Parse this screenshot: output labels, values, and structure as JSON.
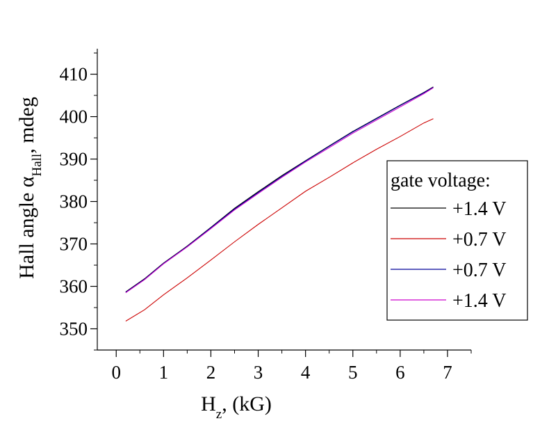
{
  "chart_data": {
    "type": "line",
    "title": "",
    "xlabel": {
      "main": "H",
      "sub": "z",
      "rest": ", (kG)"
    },
    "ylabel": {
      "main": "Hall angle α",
      "sub": "Hall",
      "rest": ", mdeg"
    },
    "xlim": [
      -0.4,
      7.5
    ],
    "ylim": [
      345,
      416
    ],
    "xticks": [
      0,
      1,
      2,
      3,
      4,
      5,
      6,
      7
    ],
    "yticks": [
      350,
      360,
      370,
      380,
      390,
      400,
      410
    ],
    "grid": false,
    "legend": {
      "title": "gate voltage:",
      "placement": "right"
    },
    "series": [
      {
        "name": "+1.4 V",
        "color": "#000000",
        "x": [
          0.2,
          0.6,
          1.0,
          1.5,
          2.0,
          2.5,
          3.0,
          3.5,
          4.0,
          4.5,
          5.0,
          5.5,
          6.0,
          6.5,
          6.7
        ],
        "y": [
          358.7,
          361.8,
          365.5,
          369.5,
          373.9,
          378.4,
          382.3,
          386.1,
          389.6,
          393.1,
          396.5,
          399.6,
          402.7,
          405.7,
          407.0
        ]
      },
      {
        "name": "+0.7 V",
        "color": "#cc0000",
        "x": [
          0.2,
          0.6,
          1.0,
          1.5,
          2.0,
          2.5,
          3.0,
          3.5,
          4.0,
          4.5,
          5.0,
          5.5,
          6.0,
          6.5,
          6.7
        ],
        "y": [
          351.8,
          354.5,
          358.0,
          362.0,
          366.2,
          370.5,
          374.6,
          378.5,
          382.4,
          385.7,
          389.1,
          392.3,
          395.3,
          398.5,
          399.5
        ]
      },
      {
        "name": "+0.7 V",
        "color": "#000099",
        "x": [
          0.2,
          0.6,
          1.0,
          1.5,
          2.0,
          2.5,
          3.0,
          3.5,
          4.0,
          4.5,
          5.0,
          5.5,
          6.0,
          6.5,
          6.7
        ],
        "y": [
          358.6,
          361.7,
          365.4,
          369.4,
          373.8,
          378.2,
          382.1,
          385.9,
          389.5,
          393.0,
          396.4,
          399.5,
          402.6,
          405.6,
          406.9
        ]
      },
      {
        "name": "+1.4 V",
        "color": "#cc00cc",
        "x": [
          0.2,
          0.6,
          1.0,
          1.5,
          2.0,
          2.5,
          3.0,
          3.5,
          4.0,
          4.5,
          5.0,
          5.5,
          6.0,
          6.5,
          6.7
        ],
        "y": [
          358.5,
          361.6,
          365.3,
          369.3,
          373.6,
          378.0,
          381.9,
          385.7,
          389.3,
          392.7,
          396.1,
          399.2,
          402.3,
          405.4,
          406.8
        ]
      }
    ]
  }
}
